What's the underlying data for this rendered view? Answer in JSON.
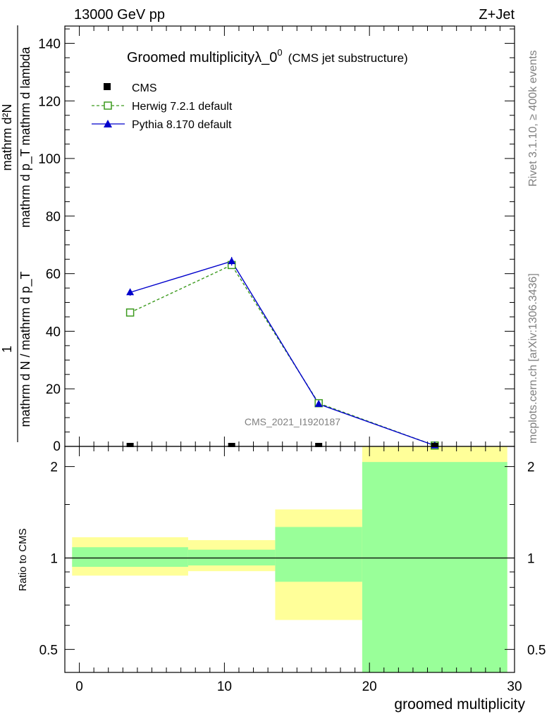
{
  "header": {
    "energy_label": "13000 GeV pp",
    "process_label": "Z+Jet"
  },
  "side_text": {
    "rivet": "Rivet 3.1.10, ≥ 400k events",
    "source": "mcplots.cern.ch [arXiv:1306.3436]"
  },
  "watermark": "CMS_2021_I1920187",
  "chart_data": {
    "type": "line",
    "title": "Groomed multiplicityλ_0",
    "title_superscript": "0",
    "subtitle": "(CMS jet substructure)",
    "xlabel": "groomed multiplicity",
    "ylabel_top": {
      "numerator": "mathrm d²N",
      "denominator": "mathrm d p_T mathrm d lambda",
      "prefactor_numerator": "1",
      "prefactor_denominator": "mathrm d N / mathrm d p_T"
    },
    "ylabel_ratio": "Ratio to CMS",
    "xlim": [
      -1,
      30
    ],
    "ylim": [
      0,
      146
    ],
    "ratio_ylim": [
      0.42,
      2.33
    ],
    "x_ticks": [
      0,
      10,
      20,
      30
    ],
    "y_ticks": [
      20,
      40,
      60,
      80,
      100,
      120,
      140
    ],
    "y_ticks_zero": "0",
    "ratio_ticks": [
      0.5,
      1,
      2
    ],
    "ratio_tick_labels": [
      "0.5",
      "1",
      "2"
    ],
    "legend": [
      {
        "name": "CMS",
        "marker": "square-filled",
        "color": "#000000"
      },
      {
        "name": "Herwig 7.2.1 default",
        "marker": "square-open",
        "color": "#3c9a1e",
        "dash": true
      },
      {
        "name": "Pythia 8.170 default",
        "marker": "triangle",
        "color": "#0000cc"
      }
    ],
    "series": [
      {
        "name": "CMS",
        "x": [
          3.5,
          10.5,
          16.5,
          24.5
        ],
        "values": [
          0,
          0,
          0,
          0
        ]
      },
      {
        "name": "Herwig 7.2.1 default",
        "x": [
          3.5,
          10.5,
          16.5,
          24.5
        ],
        "values": [
          46.5,
          63,
          15,
          0.3
        ]
      },
      {
        "name": "Pythia 8.170 default",
        "x": [
          3.5,
          10.5,
          16.5,
          24.5
        ],
        "values": [
          53.5,
          64.3,
          14.7,
          0.3
        ],
        "errors": [
          1.2,
          1.5,
          0.4,
          0.1
        ]
      }
    ],
    "ratio_bands": [
      {
        "x_low": -0.5,
        "x_high": 7.5,
        "yellow": [
          0.875,
          1.17
        ],
        "green": [
          0.935,
          1.085
        ]
      },
      {
        "x_low": 7.5,
        "x_high": 13.5,
        "yellow": [
          0.905,
          1.145
        ],
        "green": [
          0.945,
          1.065
        ]
      },
      {
        "x_low": 13.5,
        "x_high": 19.5,
        "yellow": [
          0.625,
          1.445
        ],
        "green": [
          0.835,
          1.265
        ]
      },
      {
        "x_low": 19.5,
        "x_high": 29.5,
        "yellow": [
          0.42,
          2.33
        ],
        "green": [
          0.42,
          2.07
        ]
      }
    ]
  }
}
